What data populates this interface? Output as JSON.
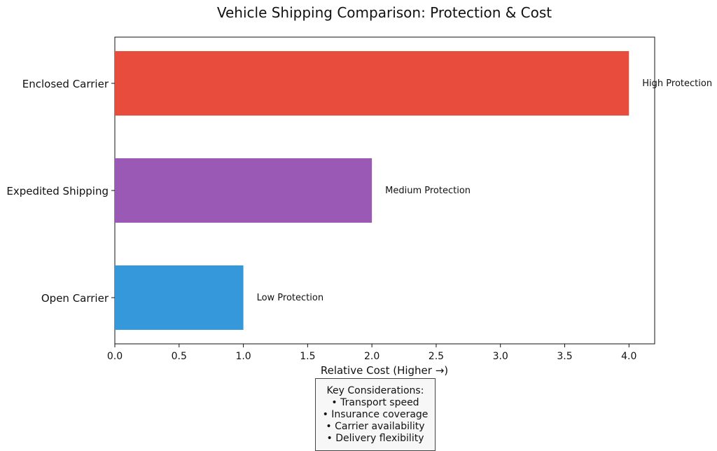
{
  "chart_data": {
    "type": "bar",
    "orientation": "horizontal",
    "title": "Vehicle Shipping Comparison: Protection & Cost",
    "xlabel": "Relative Cost (Higher →)",
    "ylabel": "",
    "xlim": [
      0,
      4.2
    ],
    "x_ticks": [
      "0.0",
      "0.5",
      "1.0",
      "1.5",
      "2.0",
      "2.5",
      "3.0",
      "3.5",
      "4.0"
    ],
    "categories": [
      "Open Carrier",
      "Expedited Shipping",
      "Enclosed Carrier"
    ],
    "values": [
      1,
      2,
      4
    ],
    "colors": [
      "#3498db",
      "#9b59b6",
      "#e74c3c"
    ],
    "annotations": [
      "Low Protection",
      "Medium Protection",
      "High Protection"
    ],
    "grid": false,
    "legend": "none"
  },
  "key_box": {
    "title": "Key Considerations:",
    "items": [
      "• Transport speed",
      "• Insurance coverage",
      "• Carrier availability",
      "• Delivery flexibility"
    ]
  }
}
